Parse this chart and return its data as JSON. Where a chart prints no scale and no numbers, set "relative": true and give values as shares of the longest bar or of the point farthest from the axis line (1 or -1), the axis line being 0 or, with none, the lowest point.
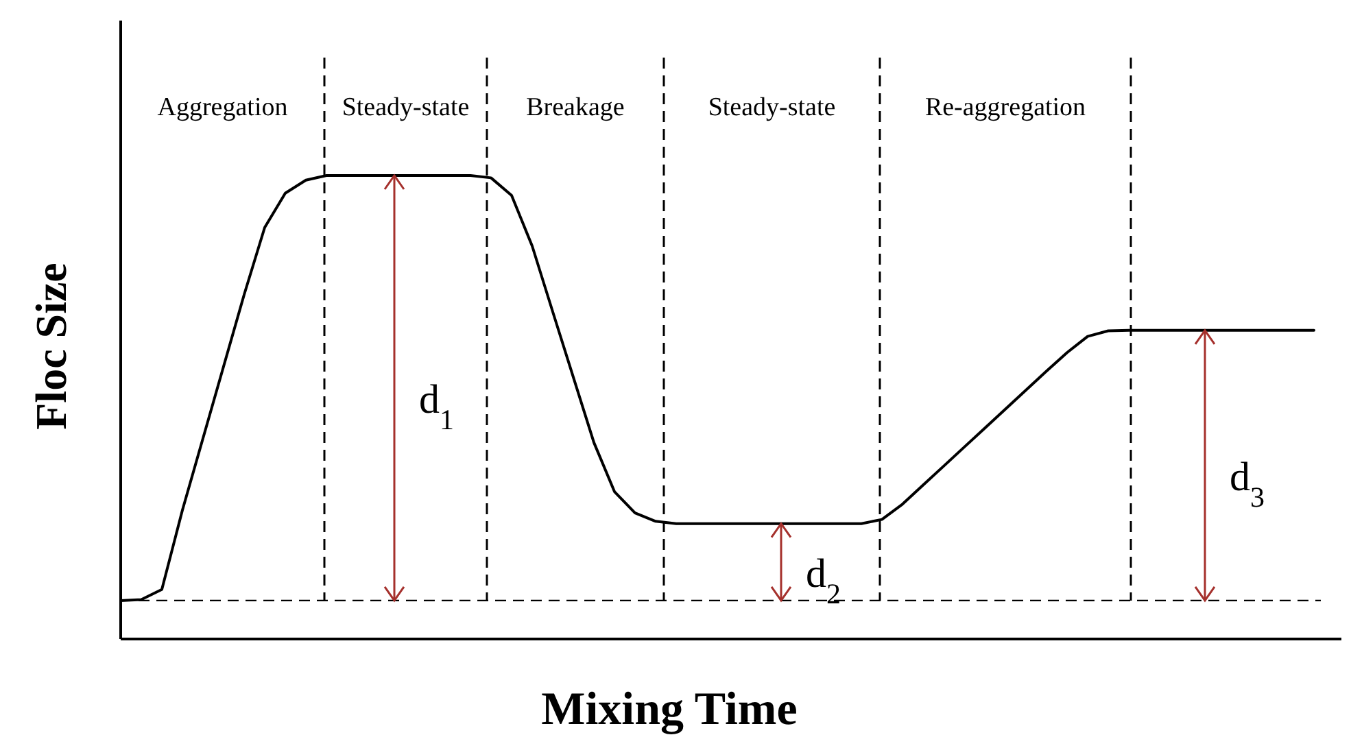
{
  "chart_data": {
    "type": "line",
    "relative": true,
    "xlabel": "Mixing Time",
    "ylabel": "Floc Size",
    "marker": "none",
    "line_style": "solid",
    "categories": [
      null,
      null,
      null,
      null,
      null,
      null,
      null,
      null,
      null,
      null,
      null,
      null,
      null,
      null,
      null,
      null,
      null,
      null,
      null,
      null,
      null,
      null,
      null,
      null,
      null,
      null,
      null,
      null,
      null,
      null,
      null,
      null,
      null,
      null,
      null,
      null,
      null,
      null,
      null,
      null,
      null,
      null,
      null,
      null,
      null,
      null,
      null,
      null,
      null,
      null,
      null,
      null,
      null,
      null,
      null,
      null,
      null,
      null,
      null
    ],
    "series": [
      {
        "color": "#000000",
        "values": [
          0.083,
          0.085,
          0.107,
          0.278,
          0.433,
          0.588,
          0.743,
          0.888,
          0.962,
          0.99,
          1,
          1,
          1,
          1,
          1,
          1,
          1,
          1,
          0.995,
          0.957,
          0.848,
          0.706,
          0.565,
          0.424,
          0.318,
          0.272,
          0.254,
          0.249,
          0.249,
          0.249,
          0.249,
          0.249,
          0.249,
          0.249,
          0.249,
          0.249,
          0.249,
          0.258,
          0.291,
          0.332,
          0.373,
          0.414,
          0.455,
          0.496,
          0.537,
          0.578,
          0.618,
          0.653,
          0.665,
          0.666,
          0.666,
          0.666,
          0.666,
          0.666,
          0.666,
          0.666,
          0.666,
          0.666,
          0.666
        ]
      }
    ],
    "ref_lines": [
      {
        "axis": "y",
        "value": 0.083,
        "line_style": "dashed",
        "color": "#000000"
      }
    ],
    "annotations": [
      "Aggregation",
      "Steady-state",
      "Breakage",
      "Steady-state",
      "Re-aggregation",
      "d$_{1}$",
      "d$_{2}$",
      "d$_{3}$"
    ]
  }
}
